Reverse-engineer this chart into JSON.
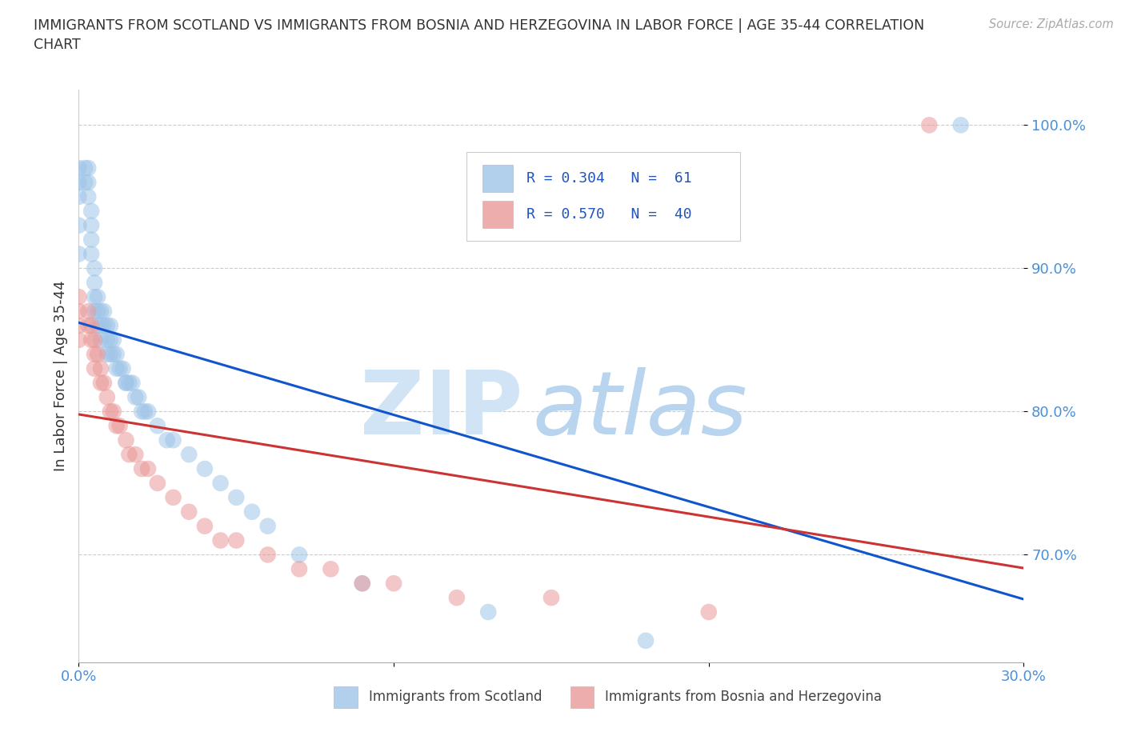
{
  "title": "IMMIGRANTS FROM SCOTLAND VS IMMIGRANTS FROM BOSNIA AND HERZEGOVINA IN LABOR FORCE | AGE 35-44 CORRELATION\nCHART",
  "source_text": "Source: ZipAtlas.com",
  "ylabel": "In Labor Force | Age 35-44",
  "xlim": [
    0.0,
    0.3
  ],
  "ylim": [
    0.625,
    1.025
  ],
  "ytick_values": [
    0.7,
    0.8,
    0.9,
    1.0
  ],
  "xtick_values": [
    0.0,
    0.1,
    0.2,
    0.3
  ],
  "xtick_labels": [
    "0.0%",
    "",
    "",
    "30.0%"
  ],
  "r_scotland": 0.304,
  "n_scotland": 61,
  "r_bosnia": 0.57,
  "n_bosnia": 40,
  "color_scotland": "#9fc5e8",
  "color_bosnia": "#ea9999",
  "trendline_scotland": "#1155cc",
  "trendline_bosnia": "#cc3333",
  "watermark_zip_color": "#d0e4f5",
  "watermark_atlas_color": "#b8d4ee",
  "legend_label_scotland": "Immigrants from Scotland",
  "legend_label_bosnia": "Immigrants from Bosnia and Herzegovina",
  "scotland_x": [
    0.0,
    0.0,
    0.0,
    0.0,
    0.0,
    0.002,
    0.002,
    0.003,
    0.003,
    0.003,
    0.004,
    0.004,
    0.004,
    0.004,
    0.005,
    0.005,
    0.005,
    0.005,
    0.006,
    0.006,
    0.006,
    0.007,
    0.007,
    0.007,
    0.008,
    0.008,
    0.009,
    0.009,
    0.009,
    0.01,
    0.01,
    0.01,
    0.011,
    0.011,
    0.012,
    0.012,
    0.013,
    0.014,
    0.015,
    0.015,
    0.016,
    0.017,
    0.018,
    0.019,
    0.02,
    0.021,
    0.022,
    0.025,
    0.028,
    0.03,
    0.035,
    0.04,
    0.045,
    0.05,
    0.055,
    0.06,
    0.07,
    0.09,
    0.13,
    0.18,
    0.28
  ],
  "scotland_y": [
    0.97,
    0.96,
    0.95,
    0.93,
    0.91,
    0.97,
    0.96,
    0.97,
    0.96,
    0.95,
    0.94,
    0.93,
    0.92,
    0.91,
    0.9,
    0.89,
    0.88,
    0.87,
    0.88,
    0.87,
    0.86,
    0.87,
    0.86,
    0.85,
    0.87,
    0.86,
    0.86,
    0.85,
    0.84,
    0.86,
    0.85,
    0.84,
    0.85,
    0.84,
    0.84,
    0.83,
    0.83,
    0.83,
    0.82,
    0.82,
    0.82,
    0.82,
    0.81,
    0.81,
    0.8,
    0.8,
    0.8,
    0.79,
    0.78,
    0.78,
    0.77,
    0.76,
    0.75,
    0.74,
    0.73,
    0.72,
    0.7,
    0.68,
    0.66,
    0.64,
    1.0
  ],
  "bosnia_x": [
    0.0,
    0.0,
    0.0,
    0.0,
    0.003,
    0.003,
    0.004,
    0.004,
    0.005,
    0.005,
    0.005,
    0.006,
    0.007,
    0.007,
    0.008,
    0.009,
    0.01,
    0.011,
    0.012,
    0.013,
    0.015,
    0.016,
    0.018,
    0.02,
    0.022,
    0.025,
    0.03,
    0.035,
    0.04,
    0.045,
    0.05,
    0.06,
    0.07,
    0.08,
    0.09,
    0.1,
    0.12,
    0.15,
    0.2,
    0.27
  ],
  "bosnia_y": [
    0.88,
    0.87,
    0.86,
    0.85,
    0.87,
    0.86,
    0.86,
    0.85,
    0.85,
    0.84,
    0.83,
    0.84,
    0.83,
    0.82,
    0.82,
    0.81,
    0.8,
    0.8,
    0.79,
    0.79,
    0.78,
    0.77,
    0.77,
    0.76,
    0.76,
    0.75,
    0.74,
    0.73,
    0.72,
    0.71,
    0.71,
    0.7,
    0.69,
    0.69,
    0.68,
    0.68,
    0.67,
    0.67,
    0.66,
    1.0
  ]
}
